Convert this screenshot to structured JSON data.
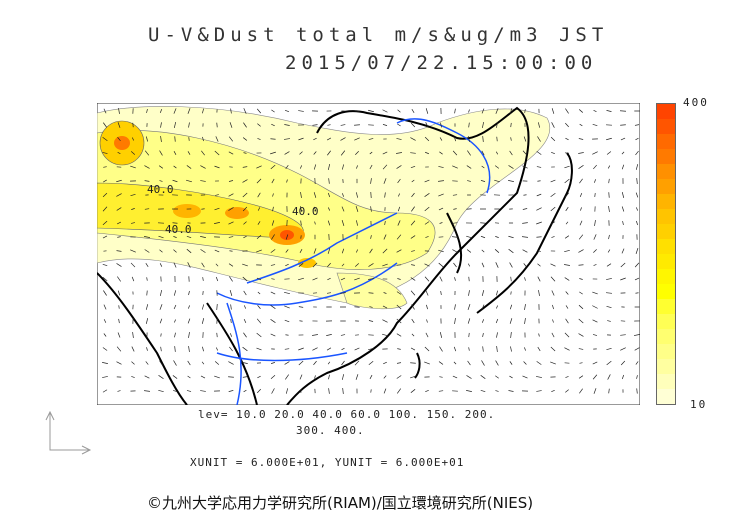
{
  "title": {
    "line1": "U-V&Dust total m/s&ug/m3 JST",
    "line2": "2015/07/22.15:00:00"
  },
  "colorbar": {
    "max_label": "400",
    "min_label": "10",
    "colors": [
      "#ff4400",
      "#ff5500",
      "#ff6a00",
      "#ff7a00",
      "#ff9000",
      "#ffa000",
      "#ffb400",
      "#ffc400",
      "#ffd000",
      "#ffe000",
      "#ffea00",
      "#fff600",
      "#ffff00",
      "#ffff30",
      "#ffff55",
      "#ffff70",
      "#ffff88",
      "#ffffa0",
      "#ffffbb",
      "#ffffd5"
    ]
  },
  "map": {
    "contour_labels": [
      "40.0",
      "40.0",
      "40.0"
    ],
    "colors": {
      "coast": "#000000",
      "river": "#1a55ff",
      "arrow": "#222222"
    }
  },
  "footer": {
    "lev_line1": "lev= 10.0 20.0 40.0 60.0 100. 150. 200.",
    "lev_line2": "300. 400.",
    "units": "XUNIT = 6.000E+01, YUNIT = 6.000E+01",
    "credit": "©九州大学応用力学研究所(RIAM)/国立環境研究所(NIES)"
  }
}
